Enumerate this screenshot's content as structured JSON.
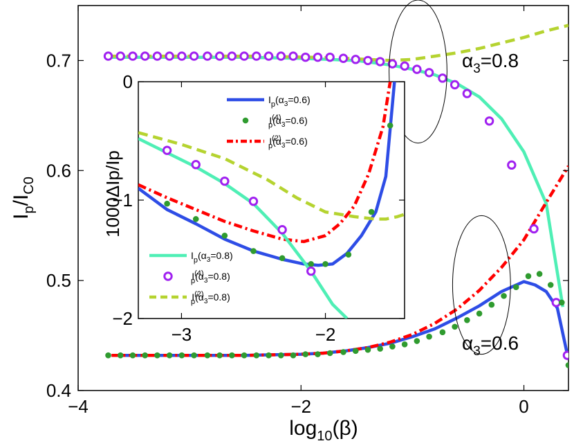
{
  "chart_data": [
    {
      "id": "main",
      "type": "line",
      "xlabel": "log10(β)",
      "ylabel": "Ip/IC0",
      "xlim": [
        -4,
        0.4
      ],
      "ylim": [
        0.4,
        0.75
      ],
      "xticks": [
        -4,
        -2,
        0
      ],
      "xtick_labels": [
        "−4",
        "−2",
        "0"
      ],
      "yticks": [
        0.4,
        0.5,
        0.6,
        0.7
      ],
      "ytick_labels": [
        "0.4",
        "0.5",
        "0.6",
        "0.7"
      ],
      "annotations": [
        {
          "label": "α3=0.8",
          "x": -0.6,
          "y": 0.697
        },
        {
          "label": "α3=0.6",
          "x": -0.6,
          "y": 0.456
        }
      ],
      "ellipses": [
        {
          "cx": -0.95,
          "cy": 0.69,
          "rx": 0.26,
          "ry": 0.065
        },
        {
          "cx": -0.38,
          "cy": 0.496,
          "rx": 0.26,
          "ry": 0.063
        }
      ],
      "series": [
        {
          "name": "Ip(α3=0.8)",
          "style": "line",
          "color": "#4fefb5",
          "x": [
            -3.7,
            -3.0,
            -2.5,
            -2.0,
            -1.5,
            -1.2,
            -1.0,
            -0.8,
            -0.6,
            -0.4,
            -0.2,
            0.0,
            0.2,
            0.35
          ],
          "y": [
            0.703,
            0.703,
            0.703,
            0.702,
            0.7,
            0.696,
            0.692,
            0.687,
            0.679,
            0.667,
            0.647,
            0.617,
            0.57,
            0.476
          ]
        },
        {
          "name": "Ip(4)(α3=0.8)",
          "style": "circle",
          "color": "#a020f0",
          "x": [
            -3.73,
            -3.62,
            -3.51,
            -3.4,
            -3.29,
            -3.18,
            -3.07,
            -2.96,
            -2.84,
            -2.73,
            -2.62,
            -2.51,
            -2.4,
            -2.29,
            -2.18,
            -2.07,
            -1.96,
            -1.85,
            -1.74,
            -1.62,
            -1.51,
            -1.4,
            -1.29,
            -1.18,
            -1.07,
            -0.96,
            -0.85,
            -0.73,
            -0.62,
            -0.51,
            -0.31,
            -0.11,
            0.09,
            0.29,
            0.39
          ],
          "y": [
            0.704,
            0.704,
            0.704,
            0.704,
            0.704,
            0.704,
            0.704,
            0.704,
            0.704,
            0.704,
            0.704,
            0.704,
            0.704,
            0.704,
            0.704,
            0.704,
            0.703,
            0.703,
            0.703,
            0.702,
            0.701,
            0.7,
            0.699,
            0.697,
            0.695,
            0.692,
            0.689,
            0.684,
            0.678,
            0.67,
            0.645,
            0.605,
            0.547,
            0.48,
            0.432
          ]
        },
        {
          "name": "Ip(2)(α3=0.8)",
          "style": "dashed",
          "color": "#b5d330",
          "x": [
            -3.7,
            -2.5,
            -1.9,
            -1.6,
            -1.4,
            -1.2,
            -1.0,
            -0.8,
            -0.6,
            -0.4,
            -0.2,
            0.0,
            0.2,
            0.4
          ],
          "y": [
            0.704,
            0.704,
            0.703,
            0.702,
            0.701,
            0.7,
            0.701,
            0.704,
            0.707,
            0.711,
            0.716,
            0.721,
            0.727,
            0.732
          ]
        },
        {
          "name": "Ip(α3=0.6)",
          "style": "line",
          "color": "#2e4de6",
          "x": [
            -3.7,
            -3.0,
            -2.5,
            -2.0,
            -1.8,
            -1.6,
            -1.4,
            -1.2,
            -1.0,
            -0.8,
            -0.6,
            -0.4,
            -0.2,
            0.0,
            0.1,
            0.2,
            0.3,
            0.4
          ],
          "y": [
            0.432,
            0.432,
            0.432,
            0.433,
            0.434,
            0.436,
            0.439,
            0.443,
            0.449,
            0.456,
            0.466,
            0.477,
            0.49,
            0.499,
            0.496,
            0.49,
            0.475,
            0.428
          ]
        },
        {
          "name": "Ip(4)(α3=0.6)",
          "style": "dot",
          "color": "#2f9b2f",
          "x": [
            -3.73,
            -3.62,
            -3.51,
            -3.4,
            -3.29,
            -3.18,
            -3.07,
            -2.96,
            -2.84,
            -2.73,
            -2.62,
            -2.51,
            -2.4,
            -2.29,
            -2.18,
            -2.07,
            -1.96,
            -1.85,
            -1.74,
            -1.62,
            -1.51,
            -1.4,
            -1.29,
            -1.18,
            -1.07,
            -0.96,
            -0.85,
            -0.73,
            -0.62,
            -0.51,
            -0.4,
            -0.29,
            -0.18,
            -0.07,
            0.04,
            0.14,
            0.24,
            0.34,
            0.4
          ],
          "y": [
            0.432,
            0.432,
            0.432,
            0.432,
            0.432,
            0.432,
            0.432,
            0.432,
            0.432,
            0.432,
            0.432,
            0.432,
            0.432,
            0.432,
            0.432,
            0.432,
            0.433,
            0.433,
            0.434,
            0.435,
            0.436,
            0.437,
            0.438,
            0.44,
            0.442,
            0.445,
            0.449,
            0.453,
            0.458,
            0.464,
            0.47,
            0.478,
            0.486,
            0.494,
            0.504,
            0.506,
            0.496,
            0.48,
            0.423
          ]
        },
        {
          "name": "Ip(2)(α3=0.6)",
          "style": "dashdot",
          "color": "#ff0000",
          "x": [
            -3.7,
            -3.0,
            -2.5,
            -2.0,
            -1.8,
            -1.6,
            -1.4,
            -1.2,
            -1.0,
            -0.8,
            -0.6,
            -0.4,
            -0.2,
            0.0,
            0.2,
            0.4
          ],
          "y": [
            0.432,
            0.432,
            0.432,
            0.433,
            0.434,
            0.436,
            0.439,
            0.444,
            0.451,
            0.461,
            0.474,
            0.491,
            0.512,
            0.537,
            0.571,
            0.604
          ]
        }
      ]
    },
    {
      "id": "inset",
      "type": "line",
      "ylabel": "1000ΔIp/Ip",
      "xlim": [
        -3.3,
        -1.45
      ],
      "ylim": [
        -2,
        0
      ],
      "xticks": [
        -3,
        -2
      ],
      "xtick_labels": [
        "−3",
        "−2"
      ],
      "yticks": [
        -2,
        -1,
        0
      ],
      "ytick_labels": [
        "−2",
        "−1",
        "0"
      ],
      "series": [
        {
          "name": "Ip(α3=0.6)",
          "style": "line",
          "color": "#2e4de6",
          "x": [
            -3.3,
            -3.1,
            -2.9,
            -2.7,
            -2.5,
            -2.3,
            -2.15,
            -2.05,
            -1.95,
            -1.85,
            -1.75,
            -1.65,
            -1.58,
            -1.52
          ],
          "y": [
            -0.9,
            -1.08,
            -1.2,
            -1.33,
            -1.43,
            -1.5,
            -1.54,
            -1.55,
            -1.54,
            -1.45,
            -1.3,
            -1.1,
            -0.8,
            0
          ]
        },
        {
          "name": "Ip(4)(α3=0.6)",
          "style": "dot",
          "color": "#2f9b2f",
          "x": [
            -3.1,
            -2.9,
            -2.7,
            -2.5,
            -2.3,
            -2.1,
            -2.0,
            -1.84,
            -1.68,
            -1.55
          ],
          "y": [
            -1.03,
            -1.16,
            -1.3,
            -1.43,
            -1.49,
            -1.54,
            -1.54,
            -1.46,
            -1.1,
            -0.37
          ]
        },
        {
          "name": "Ip(2)(α3=0.6)",
          "style": "dashdot",
          "color": "#ff0000",
          "x": [
            -3.3,
            -3.1,
            -2.9,
            -2.7,
            -2.5,
            -2.3,
            -2.15,
            -2.0,
            -1.9,
            -1.8,
            -1.7,
            -1.6,
            -1.55
          ],
          "y": [
            -0.87,
            -0.98,
            -1.08,
            -1.18,
            -1.26,
            -1.33,
            -1.35,
            -1.3,
            -1.2,
            -1.05,
            -0.78,
            -0.38,
            0
          ]
        },
        {
          "name": "Ip(α3=0.8)",
          "style": "line",
          "color": "#4fefb5",
          "x": [
            -3.3,
            -3.1,
            -2.9,
            -2.7,
            -2.5,
            -2.3,
            -2.1,
            -1.95,
            -1.85
          ],
          "y": [
            -0.48,
            -0.6,
            -0.72,
            -0.86,
            -1.03,
            -1.28,
            -1.6,
            -1.88,
            -2.0
          ]
        },
        {
          "name": "Ip(4)(α3=0.8)",
          "style": "circle",
          "color": "#a020f0",
          "x": [
            -3.1,
            -2.9,
            -2.7,
            -2.5,
            -2.3,
            -2.1
          ],
          "y": [
            -0.58,
            -0.7,
            -0.84,
            -1.01,
            -1.25,
            -1.6
          ]
        },
        {
          "name": "Ip(2)(α3=0.8)",
          "style": "dashed",
          "color": "#b5d330",
          "x": [
            -3.3,
            -3.0,
            -2.7,
            -2.4,
            -2.2,
            -2.0,
            -1.8,
            -1.65,
            -1.58,
            -1.5,
            -1.45
          ],
          "y": [
            -0.43,
            -0.53,
            -0.65,
            -0.83,
            -0.98,
            -1.1,
            -1.14,
            -1.16,
            -1.16,
            -1.14,
            -1.12
          ]
        }
      ]
    }
  ],
  "legend_top": [
    {
      "base": "I",
      "sub": "p",
      "sup": "",
      "arg": "(α",
      "argsub": "3",
      "argtail": "=0.6)",
      "color": "#2e4de6",
      "style": "line"
    },
    {
      "base": "I",
      "sub": "p",
      "sup": "(4)",
      "arg": "(α",
      "argsub": "3",
      "argtail": "=0.6)",
      "color": "#2f9b2f",
      "style": "dot"
    },
    {
      "base": "I",
      "sub": "p",
      "sup": "(2)",
      "arg": "(α",
      "argsub": "3",
      "argtail": "=0.6)",
      "color": "#ff0000",
      "style": "dashdot"
    }
  ],
  "legend_bottom": [
    {
      "base": "I",
      "sub": "p",
      "sup": "",
      "arg": "(α",
      "argsub": "3",
      "argtail": "=0.8)",
      "color": "#4fefb5",
      "style": "line"
    },
    {
      "base": "I",
      "sub": "p",
      "sup": "(4)",
      "arg": "(α",
      "argsub": "3",
      "argtail": "=0.8)",
      "color": "#a020f0",
      "style": "circle"
    },
    {
      "base": "I",
      "sub": "p",
      "sup": "(2)",
      "arg": "(α",
      "argsub": "3",
      "argtail": "=0.8)",
      "color": "#b5d330",
      "style": "dashed"
    }
  ],
  "labels": {
    "main_xlabel_base": "log",
    "main_xlabel_sub": "10",
    "main_xlabel_tail": "(β)",
    "main_ylabel_base": "I",
    "main_ylabel_sub": "p",
    "main_ylabel_mid": "/I",
    "main_ylabel_sub2": "C0",
    "inset_ylabel": "1000ΔIp/Ip",
    "ann_a08_base": "α",
    "ann_a08_sub": "3",
    "ann_a08_tail": "=0.8",
    "ann_a06_base": "α",
    "ann_a06_sub": "3",
    "ann_a06_tail": "=0.6"
  }
}
